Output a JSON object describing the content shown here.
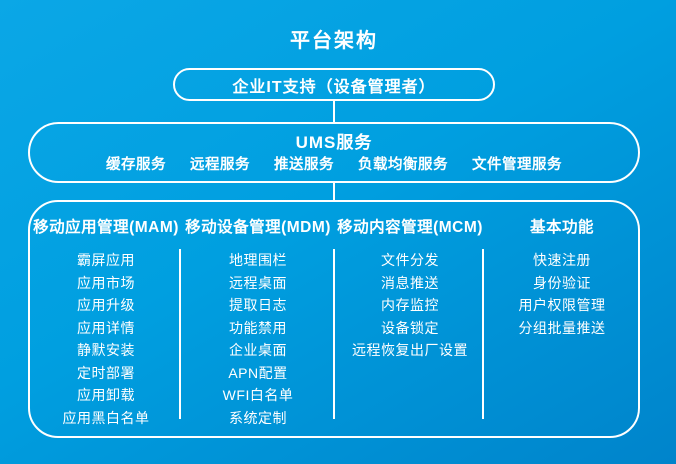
{
  "title": "平台架构",
  "top_box": {
    "label": "企业IT支持（设备管理者）"
  },
  "ums": {
    "title": "UMS服务",
    "services": [
      "缓存服务",
      "远程服务",
      "推送服务",
      "负载均衡服务",
      "文件管理服务"
    ]
  },
  "modules": [
    {
      "header": "移动应用管理(MAM)",
      "items": [
        "霸屏应用",
        "应用市场",
        "应用升级",
        "应用详情",
        "静默安装",
        "定时部署",
        "应用卸载",
        "应用黑白名单"
      ]
    },
    {
      "header": "移动设备管理(MDM)",
      "items": [
        "地理围栏",
        "远程桌面",
        "提取日志",
        "功能禁用",
        "企业桌面",
        "APN配置",
        "WFI白名单",
        "系统定制"
      ]
    },
    {
      "header": "移动内容管理(MCM)",
      "items": [
        "文件分发",
        "消息推送",
        "内存监控",
        "设备锁定",
        "远程恢复出厂设置"
      ]
    },
    {
      "header": "基本功能",
      "items": [
        "快速注册",
        "身份验证",
        "用户权限管理",
        "分组批量推送"
      ]
    }
  ],
  "colors": {
    "background_start": "#0ba7e6",
    "background_end": "#0084cb",
    "text": "#ffffff",
    "border": "#ffffff"
  }
}
